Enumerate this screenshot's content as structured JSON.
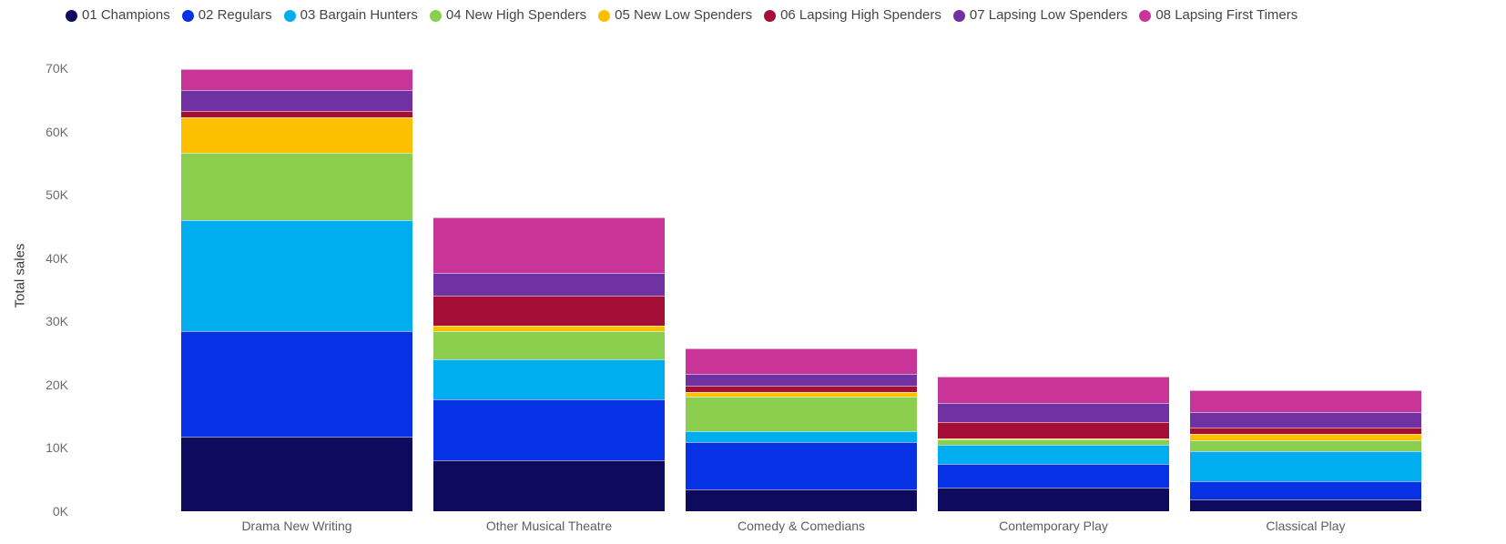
{
  "y_axis": {
    "title": "Total sales",
    "ticks": [
      "0K",
      "10K",
      "20K",
      "30K",
      "40K",
      "50K",
      "60K",
      "70K"
    ]
  },
  "chart_data": {
    "type": "bar",
    "stacked": true,
    "title": "",
    "xlabel": "",
    "ylabel": "Total sales",
    "ylim": [
      0,
      70
    ],
    "value_unit": "K (thousands of sales)",
    "grid": false,
    "legend_position": "top",
    "categories": [
      "Drama New Writing",
      "Other Musical Theatre",
      "Comedy & Comedians",
      "Contemporary Play",
      "Classical Play"
    ],
    "y_tick_labels": [
      "0K",
      "10K",
      "20K",
      "30K",
      "40K",
      "50K",
      "60K",
      "70K"
    ],
    "series": [
      {
        "name": "01 Champions",
        "color": "#0E0A5E",
        "values": [
          11.8,
          8.1,
          3.5,
          3.8,
          1.8
        ]
      },
      {
        "name": "02 Regulars",
        "color": "#0631E5",
        "values": [
          16.6,
          9.6,
          7.4,
          3.7,
          2.9
        ]
      },
      {
        "name": "03 Bargain Hunters",
        "color": "#00AEF0",
        "values": [
          17.6,
          6.3,
          1.8,
          3.0,
          4.8
        ]
      },
      {
        "name": "04 New High Spenders",
        "color": "#8CCE4D",
        "values": [
          10.6,
          4.4,
          5.4,
          0.8,
          1.7
        ]
      },
      {
        "name": "05 New Low Spenders",
        "color": "#FDC000",
        "values": [
          5.7,
          0.9,
          0.7,
          0.1,
          1.0
        ]
      },
      {
        "name": "06 Lapsing High Spenders",
        "color": "#A50E36",
        "values": [
          1.0,
          4.8,
          1.0,
          2.6,
          1.1
        ]
      },
      {
        "name": "07 Lapsing Low Spenders",
        "color": "#7031A3",
        "values": [
          3.3,
          3.5,
          1.9,
          3.0,
          2.4
        ]
      },
      {
        "name": "08 Lapsing First Timers",
        "color": "#C93499",
        "values": [
          3.3,
          8.9,
          4.1,
          4.2,
          3.4
        ]
      }
    ],
    "category_totals": [
      69.9,
      46.5,
      25.8,
      21.2,
      19.1
    ]
  }
}
